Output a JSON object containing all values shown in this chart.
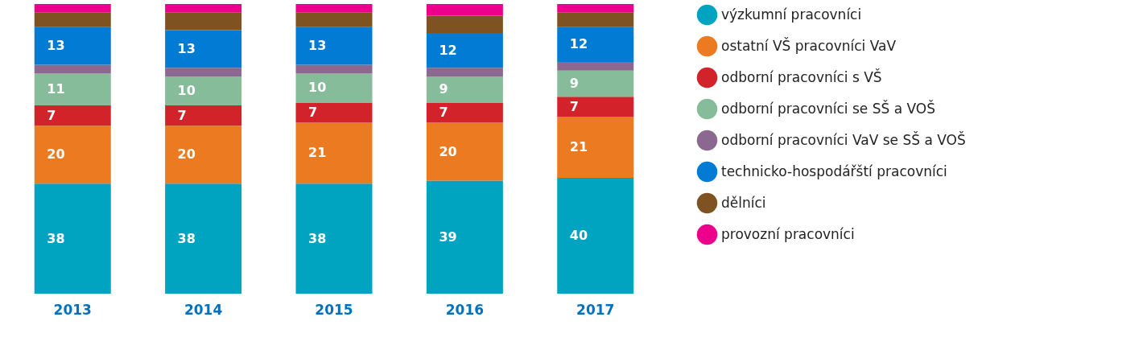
{
  "chart_data": {
    "type": "bar",
    "stacked": true,
    "categories": [
      "2013",
      "2014",
      "2015",
      "2016",
      "2017"
    ],
    "legend": "right",
    "series": [
      {
        "name": "výzkumní pracovníci",
        "color": "#00a3c0",
        "values": [
          38,
          38,
          38,
          39,
          40
        ],
        "value_labels": [
          "38",
          "38",
          "38",
          "39",
          "40"
        ]
      },
      {
        "name": "ostatní VŠ pracovníci VaV",
        "color": "#ec7a21",
        "values": [
          20,
          20,
          21,
          20,
          21
        ],
        "value_labels": [
          "20",
          "20",
          "21",
          "20",
          "21"
        ]
      },
      {
        "name": "odborní pracovníci s VŠ",
        "color": "#d2232b",
        "values": [
          7,
          7,
          7,
          7,
          7
        ],
        "value_labels": [
          "7",
          "7",
          "7",
          "7",
          "7"
        ]
      },
      {
        "name": "odborní pracovníci se SŠ a VOŠ",
        "color": "#86bc99",
        "values": [
          11,
          10,
          10,
          9,
          9
        ],
        "value_labels": [
          "11",
          "10",
          "10",
          "9",
          "9"
        ]
      },
      {
        "name": "odborní pracovníci VaV se SŠ a VOŠ",
        "color": "#8b688f",
        "values": [
          3,
          3,
          3,
          3,
          3
        ],
        "value_labels": [
          null,
          null,
          null,
          null,
          null
        ]
      },
      {
        "name": "technicko-hospodářští pracovníci",
        "color": "#017bd4",
        "values": [
          13,
          13,
          13,
          12,
          12
        ],
        "value_labels": [
          "13",
          "13",
          "13",
          "12",
          "12"
        ]
      },
      {
        "name": "dělníci",
        "color": "#7f5222",
        "values": [
          5,
          6,
          5,
          6,
          5
        ],
        "value_labels": [
          null,
          null,
          null,
          null,
          null
        ]
      },
      {
        "name": "provozní pracovníci",
        "color": "#ec008b",
        "values": [
          3,
          3,
          3,
          4,
          3
        ],
        "value_labels": [
          null,
          null,
          null,
          null,
          null
        ]
      }
    ]
  }
}
